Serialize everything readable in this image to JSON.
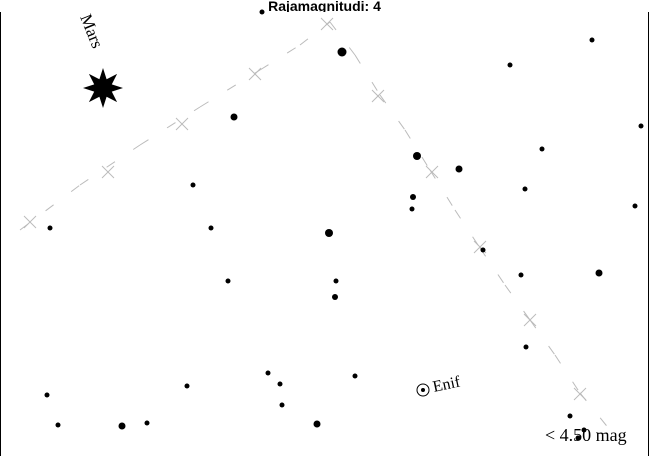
{
  "header": {
    "title": "Rajamagnitudi: 4"
  },
  "map": {
    "style": {
      "background": "#ffffff",
      "ink": "#000000",
      "ecliptic_color": "#bbbbbb"
    },
    "planet": {
      "name": "Mars",
      "symbol": "star-burst"
    },
    "named_star": {
      "name": "Enif",
      "symbol": "circled-dot"
    },
    "limit_label": "< 4.50 mag",
    "stars_shown": 43
  }
}
